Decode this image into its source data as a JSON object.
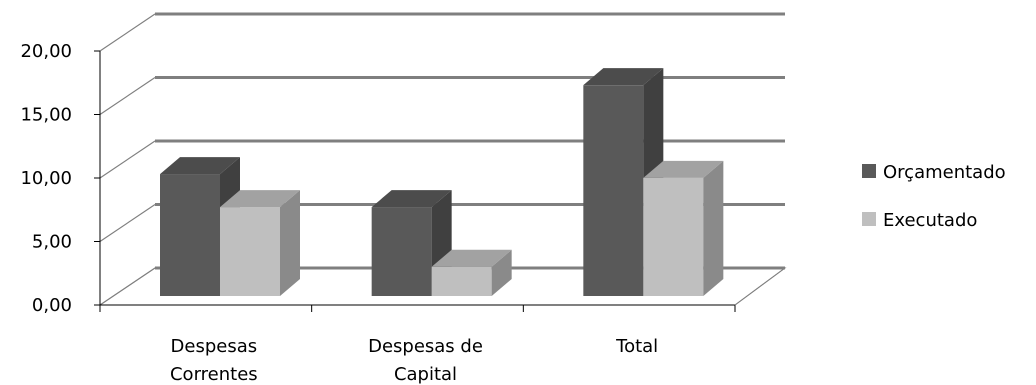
{
  "chart_data": {
    "type": "bar",
    "title": "",
    "xlabel": "",
    "ylabel": "",
    "categories": [
      [
        "Despesas",
        "Correntes"
      ],
      [
        "Despesas de",
        "Capital"
      ],
      [
        "Total"
      ]
    ],
    "series": [
      {
        "name": "Orçamentado",
        "values": [
          9.6,
          7.0,
          16.6
        ],
        "color": "#595959"
      },
      {
        "name": "Executado",
        "values": [
          7.0,
          2.3,
          9.3
        ],
        "color": "#bfbfbf"
      }
    ],
    "yticks": [
      "0,00",
      "5,00",
      "10,00",
      "15,00",
      "20,00"
    ],
    "ylim": [
      0,
      20
    ],
    "grid": true,
    "legend_position": "right",
    "style": "3d-clustered-column",
    "wall_color": "#7f7f7f"
  }
}
